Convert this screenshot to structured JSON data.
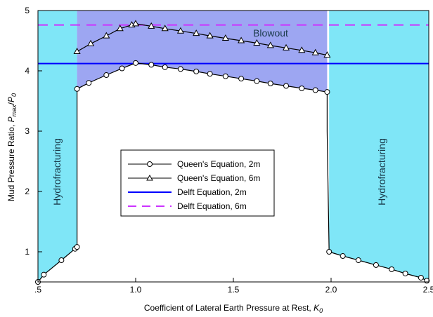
{
  "chart_data": {
    "type": "line",
    "xlabel_prefix": "Coefficient of Lateral Earth Pressure at Rest, ",
    "xlabel_symbol": "K",
    "xlabel_sub": "0",
    "ylabel_prefix": "Mud Pressure Ratio, ",
    "ylabel_symbol": "P",
    "ylabel_sub": "max",
    "ylabel_slash": "/",
    "ylabel_symbol2": "P",
    "ylabel_sub2": "0",
    "xlim": [
      0.5,
      2.5
    ],
    "ylim": [
      0.5,
      5
    ],
    "x_ticks": [
      {
        "value": 0.5,
        "label": ".5"
      },
      {
        "value": 1.0,
        "label": "1.0"
      },
      {
        "value": 1.5,
        "label": "1.5"
      },
      {
        "value": 2.0,
        "label": "2.0"
      },
      {
        "value": 2.5,
        "label": "2.5"
      }
    ],
    "y_ticks": [
      {
        "value": 1,
        "label": "1"
      },
      {
        "value": 2,
        "label": "2"
      },
      {
        "value": 3,
        "label": "3"
      },
      {
        "value": 4,
        "label": "4"
      },
      {
        "value": 5,
        "label": "5"
      }
    ],
    "regions": {
      "hydro_left_label": "Hydrofracturing",
      "hydro_right_label": "Hydrofracturing",
      "blowout_label": "Blowout",
      "hydro_color": "#7fe6f7",
      "blowout_color": "#9da6f2"
    },
    "series": [
      {
        "name": "Queen's Equation, 2m",
        "marker": "circle",
        "color": "#000000",
        "x": [
          0.5,
          0.53,
          0.62,
          0.69,
          0.7,
          0.7,
          0.76,
          0.85,
          0.93,
          1.0,
          1.08,
          1.15,
          1.23,
          1.31,
          1.38,
          1.46,
          1.54,
          1.62,
          1.69,
          1.77,
          1.85,
          1.92,
          1.98,
          1.98,
          1.99,
          2.06,
          2.14,
          2.23,
          2.31,
          2.38,
          2.46,
          2.49
        ],
        "y": [
          0.5,
          0.62,
          0.86,
          1.05,
          1.08,
          3.7,
          3.8,
          3.93,
          4.04,
          4.13,
          4.1,
          4.06,
          4.03,
          3.99,
          3.95,
          3.91,
          3.87,
          3.83,
          3.79,
          3.75,
          3.71,
          3.68,
          3.65,
          3.0,
          1.0,
          0.93,
          0.86,
          0.78,
          0.71,
          0.64,
          0.57,
          0.52
        ]
      },
      {
        "name": "Queen's Equation, 6m",
        "marker": "triangle",
        "color": "#000000",
        "x": [
          0.7,
          0.77,
          0.85,
          0.92,
          0.98,
          1.0,
          1.08,
          1.15,
          1.23,
          1.31,
          1.38,
          1.46,
          1.54,
          1.62,
          1.69,
          1.77,
          1.85,
          1.92,
          1.98
        ],
        "y": [
          4.32,
          4.45,
          4.58,
          4.7,
          4.76,
          4.78,
          4.74,
          4.7,
          4.66,
          4.62,
          4.58,
          4.54,
          4.5,
          4.46,
          4.42,
          4.38,
          4.34,
          4.3,
          4.26
        ]
      },
      {
        "name": "Delft Equation, 2m",
        "style": "solid",
        "color": "#0000ff",
        "value": 4.12
      },
      {
        "name": "Delft Equation, 6m",
        "style": "dashed",
        "color": "#cc33ff",
        "value": 4.76
      }
    ]
  }
}
